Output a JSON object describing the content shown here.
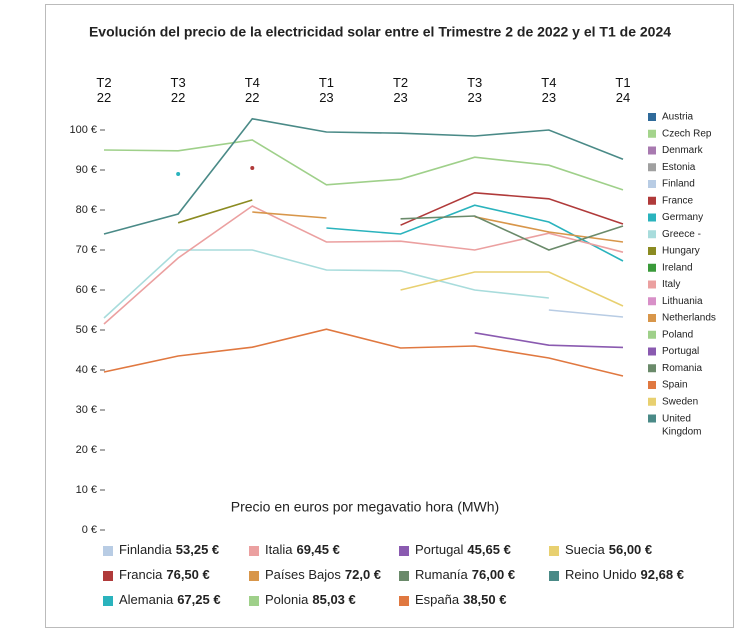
{
  "chart_data": {
    "type": "line",
    "title": "Evolución del precio de la electricidad solar entre el Trimestre 2 de 2022 y el T1 de 2024",
    "axis_label": "Precio en euros por megavatio hora (MWh)",
    "categories": [
      "T2 22",
      "T3 22",
      "T4 22",
      "T1 23",
      "T2 23",
      "T3 23",
      "T4 23",
      "T1 24"
    ],
    "ylim": [
      0,
      102
    ],
    "yticks": [
      {
        "value": 0,
        "label": "0 €"
      },
      {
        "value": 10,
        "label": "10 €"
      },
      {
        "value": 20,
        "label": "20 €"
      },
      {
        "value": 30,
        "label": "30 €"
      },
      {
        "value": 40,
        "label": "40 €"
      },
      {
        "value": 50,
        "label": "50 €"
      },
      {
        "value": 60,
        "label": "60 €"
      },
      {
        "value": 70,
        "label": "70 €"
      },
      {
        "value": 80,
        "label": "80 €"
      },
      {
        "value": 90,
        "label": "90 €"
      },
      {
        "value": 100,
        "label": "100 €"
      }
    ],
    "legend_position": "right",
    "series": [
      {
        "name": "Austria",
        "color": "#2f6a9a",
        "values": [
          null,
          null,
          null,
          null,
          null,
          null,
          null,
          null
        ]
      },
      {
        "name": "Czech Rep",
        "color": "#a4d48c",
        "values": [
          null,
          null,
          null,
          null,
          null,
          null,
          null,
          null
        ]
      },
      {
        "name": "Denmark",
        "color": "#a87ab0",
        "values": [
          null,
          null,
          null,
          null,
          null,
          null,
          null,
          null
        ]
      },
      {
        "name": "Estonia",
        "color": "#a0a0a0",
        "values": [
          null,
          null,
          null,
          null,
          null,
          null,
          null,
          null
        ]
      },
      {
        "name": "Finland",
        "color": "#b8cce4",
        "values": [
          null,
          null,
          null,
          null,
          null,
          null,
          55,
          53.25
        ]
      },
      {
        "name": "France",
        "color": "#b03a3a",
        "values": [
          null,
          null,
          90.5,
          null,
          76.2,
          84.3,
          82.8,
          76.5
        ]
      },
      {
        "name": "Germany",
        "color": "#2ab3bd",
        "values": [
          null,
          89,
          null,
          75.5,
          74,
          81.2,
          77,
          67.25
        ]
      },
      {
        "name": "Greece -",
        "color": "#a8dcdc",
        "values": [
          53,
          70,
          70,
          65,
          64.8,
          60,
          58,
          null
        ]
      },
      {
        "name": "Hungary",
        "color": "#8b8b22",
        "values": [
          null,
          76.8,
          82.5,
          null,
          null,
          null,
          null,
          null
        ]
      },
      {
        "name": "Ireland",
        "color": "#3a9a3a",
        "values": [
          null,
          null,
          null,
          null,
          null,
          null,
          null,
          null
        ]
      },
      {
        "name": "Italy",
        "color": "#eba0a0",
        "values": [
          51.5,
          68,
          81,
          72,
          72.2,
          70,
          74.2,
          69.45
        ]
      },
      {
        "name": "Lithuania",
        "color": "#d890c8",
        "values": [
          null,
          null,
          null,
          null,
          null,
          null,
          null,
          null
        ]
      },
      {
        "name": "Netherlands",
        "color": "#d8964a",
        "values": [
          null,
          null,
          79.5,
          78,
          null,
          78.3,
          74.5,
          72.0
        ]
      },
      {
        "name": "Poland",
        "color": "#9fd08a",
        "values": [
          95,
          94.8,
          97.5,
          86.3,
          87.7,
          93.2,
          91.2,
          85.03
        ]
      },
      {
        "name": "Portugal",
        "color": "#8a5ab0",
        "values": [
          null,
          null,
          null,
          null,
          null,
          49.3,
          46.2,
          45.65
        ]
      },
      {
        "name": "Romania",
        "color": "#6a8a6a",
        "values": [
          null,
          null,
          null,
          null,
          77.8,
          78.5,
          70,
          76
        ]
      },
      {
        "name": "Spain",
        "color": "#e07840",
        "values": [
          39.5,
          43.5,
          45.7,
          50.2,
          45.5,
          46,
          43,
          38.5
        ]
      },
      {
        "name": "Sweden",
        "color": "#e8d070",
        "values": [
          null,
          null,
          null,
          null,
          60,
          64.5,
          64.5,
          56
        ]
      },
      {
        "name": "United Kingdom",
        "color": "#4a8a87",
        "values": [
          74,
          79,
          102.8,
          99.5,
          99.2,
          98.5,
          100,
          92.68
        ]
      }
    ],
    "summary_legend": [
      {
        "name": "Finlandia",
        "label": "53,25 €",
        "color": "#b8cce4"
      },
      {
        "name": "Italia",
        "label": "69,45 €",
        "color": "#eba0a0"
      },
      {
        "name": "Portugal",
        "label": "45,65 €",
        "color": "#8a5ab0"
      },
      {
        "name": "Suecia",
        "label": "56,00 €",
        "color": "#e8d070"
      },
      {
        "name": "Francia",
        "label": "76,50 €",
        "color": "#b03a3a"
      },
      {
        "name": "Países Bajos",
        "label": "72,0 €",
        "color": "#d8964a"
      },
      {
        "name": "Rumanía",
        "label": "76,00 €",
        "color": "#6a8a6a"
      },
      {
        "name": "Reino Unido",
        "label": "92,68 €",
        "color": "#4a8a87"
      },
      {
        "name": "Alemania",
        "label": "67,25 €",
        "color": "#2ab3bd"
      },
      {
        "name": "Polonia",
        "label": "85,03 €",
        "color": "#9fd08a"
      },
      {
        "name": "España",
        "label": "38,50 €",
        "color": "#e07840"
      }
    ]
  }
}
